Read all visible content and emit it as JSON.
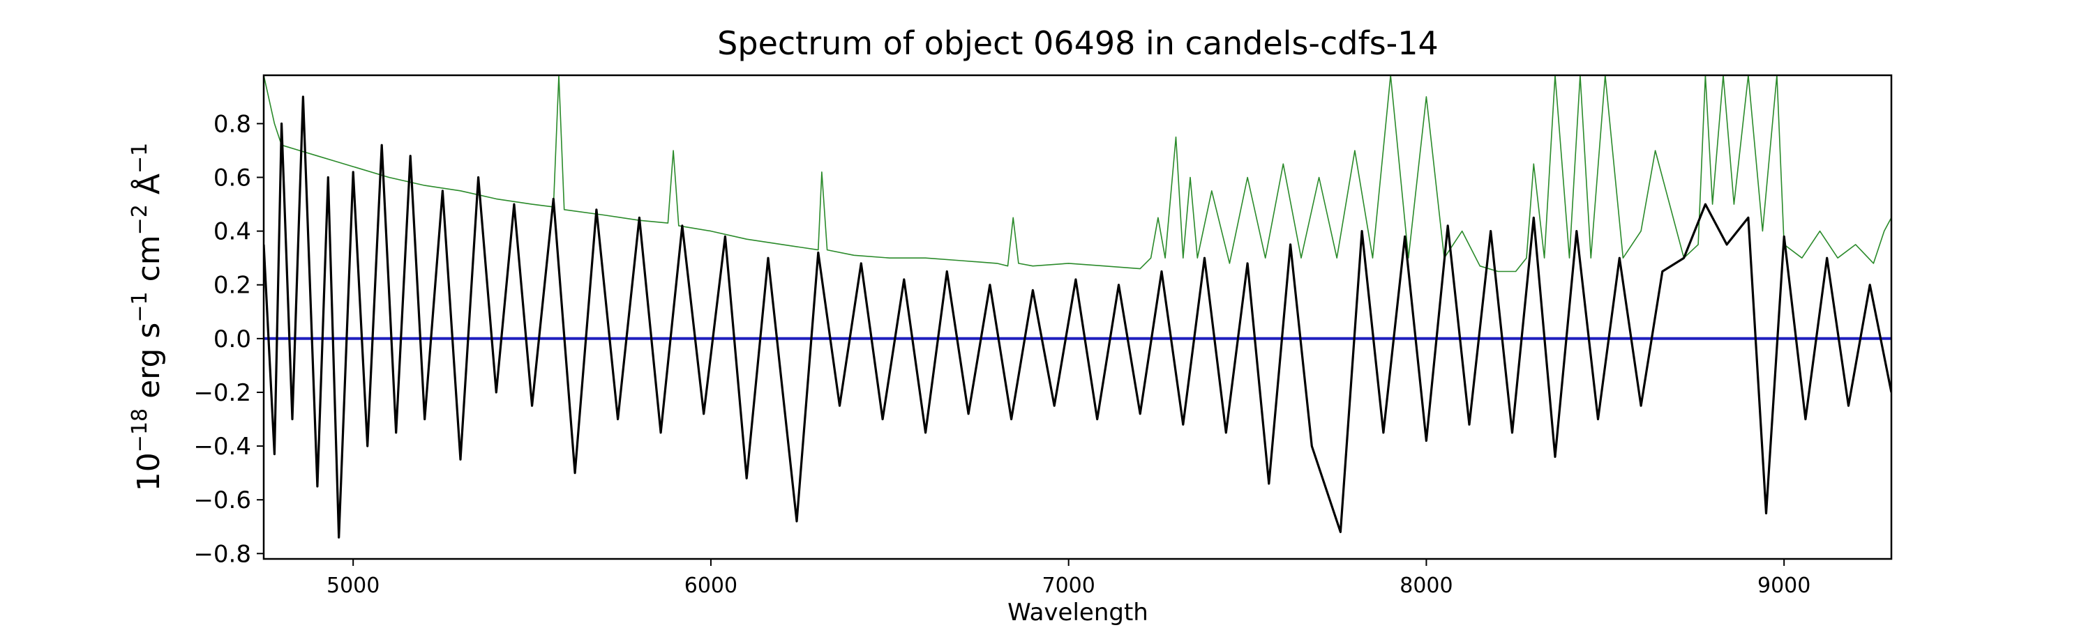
{
  "chart_data": {
    "type": "line",
    "title": "Spectrum of object 06498 in candels-cdfs-14",
    "xlabel": "Wavelength",
    "ylabel_parts": {
      "base": "10",
      "exp_flux": "−18",
      "erg": " erg s",
      "exp_s": "−1",
      "cm": " cm",
      "exp_cm": "−2",
      "ang": " Å",
      "exp_ang": "−1"
    },
    "xlim": [
      4750,
      9300
    ],
    "ylim": [
      -0.82,
      0.98
    ],
    "x_ticks": [
      5000,
      6000,
      7000,
      8000,
      9000
    ],
    "x_tick_labels": [
      "5000",
      "6000",
      "7000",
      "8000",
      "9000"
    ],
    "y_ticks": [
      -0.8,
      -0.6,
      -0.4,
      -0.2,
      0.0,
      0.2,
      0.4,
      0.6,
      0.8
    ],
    "y_tick_labels": [
      "−0.8",
      "−0.6",
      "−0.4",
      "−0.2",
      "0.0",
      "0.2",
      "0.4",
      "0.6",
      "0.8"
    ],
    "grid": false,
    "legend": "none",
    "colors": {
      "flux": "#000000",
      "error": "#2a8a2a",
      "zero": "#1f1fbf"
    },
    "series": [
      {
        "role": "flux",
        "x": [
          4750,
          4780,
          4800,
          4830,
          4860,
          4900,
          4930,
          4960,
          5000,
          5040,
          5080,
          5120,
          5160,
          5200,
          5250,
          5300,
          5350,
          5400,
          5450,
          5500,
          5560,
          5620,
          5680,
          5740,
          5800,
          5860,
          5920,
          5980,
          6040,
          6100,
          6160,
          6240,
          6300,
          6360,
          6420,
          6480,
          6540,
          6600,
          6660,
          6720,
          6780,
          6840,
          6900,
          6960,
          7020,
          7080,
          7140,
          7200,
          7260,
          7320,
          7380,
          7440,
          7500,
          7560,
          7620,
          7680,
          7760,
          7820,
          7880,
          7940,
          8000,
          8060,
          8120,
          8180,
          8240,
          8300,
          8360,
          8420,
          8480,
          8540,
          8600,
          8660,
          8720,
          8780,
          8840,
          8900,
          8950,
          9000,
          9060,
          9120,
          9180,
          9240,
          9300
        ],
        "y": [
          0.35,
          -0.43,
          0.8,
          -0.3,
          0.9,
          -0.55,
          0.6,
          -0.74,
          0.62,
          -0.4,
          0.72,
          -0.35,
          0.68,
          -0.3,
          0.55,
          -0.45,
          0.6,
          -0.2,
          0.5,
          -0.25,
          0.52,
          -0.5,
          0.48,
          -0.3,
          0.45,
          -0.35,
          0.42,
          -0.28,
          0.38,
          -0.52,
          0.3,
          -0.68,
          0.32,
          -0.25,
          0.28,
          -0.3,
          0.22,
          -0.35,
          0.25,
          -0.28,
          0.2,
          -0.3,
          0.18,
          -0.25,
          0.22,
          -0.3,
          0.2,
          -0.28,
          0.25,
          -0.32,
          0.3,
          -0.35,
          0.28,
          -0.54,
          0.35,
          -0.4,
          -0.72,
          0.4,
          -0.35,
          0.38,
          -0.38,
          0.42,
          -0.32,
          0.4,
          -0.35,
          0.45,
          -0.44,
          0.4,
          -0.3,
          0.3,
          -0.25,
          0.25,
          0.3,
          0.5,
          0.35,
          0.45,
          -0.65,
          0.38,
          -0.3,
          0.3,
          -0.25,
          0.2,
          -0.2
        ]
      },
      {
        "role": "error",
        "x": [
          4750,
          4780,
          4800,
          4850,
          4900,
          4950,
          5000,
          5100,
          5200,
          5300,
          5400,
          5500,
          5560,
          5575,
          5590,
          5700,
          5800,
          5880,
          5895,
          5910,
          6000,
          6100,
          6200,
          6300,
          6310,
          6325,
          6400,
          6500,
          6600,
          6700,
          6800,
          6830,
          6845,
          6860,
          6900,
          7000,
          7100,
          7200,
          7230,
          7250,
          7270,
          7300,
          7320,
          7340,
          7360,
          7400,
          7450,
          7500,
          7550,
          7600,
          7650,
          7700,
          7750,
          7800,
          7850,
          7900,
          7950,
          8000,
          8050,
          8100,
          8150,
          8200,
          8250,
          8280,
          8300,
          8330,
          8360,
          8400,
          8430,
          8460,
          8500,
          8550,
          8600,
          8640,
          8680,
          8720,
          8760,
          8780,
          8800,
          8830,
          8860,
          8900,
          8940,
          8980,
          9000,
          9050,
          9100,
          9150,
          9200,
          9250,
          9280,
          9300
        ],
        "y": [
          0.98,
          0.8,
          0.72,
          0.7,
          0.68,
          0.66,
          0.64,
          0.6,
          0.57,
          0.55,
          0.52,
          0.5,
          0.49,
          0.98,
          0.48,
          0.46,
          0.44,
          0.43,
          0.7,
          0.42,
          0.4,
          0.37,
          0.35,
          0.33,
          0.62,
          0.33,
          0.31,
          0.3,
          0.3,
          0.29,
          0.28,
          0.27,
          0.45,
          0.28,
          0.27,
          0.28,
          0.27,
          0.26,
          0.3,
          0.45,
          0.3,
          0.75,
          0.3,
          0.6,
          0.3,
          0.55,
          0.28,
          0.6,
          0.3,
          0.65,
          0.3,
          0.6,
          0.3,
          0.7,
          0.3,
          0.98,
          0.3,
          0.9,
          0.3,
          0.4,
          0.27,
          0.25,
          0.25,
          0.3,
          0.65,
          0.3,
          0.98,
          0.3,
          0.98,
          0.3,
          0.98,
          0.3,
          0.4,
          0.7,
          0.5,
          0.3,
          0.35,
          0.98,
          0.5,
          0.98,
          0.5,
          0.98,
          0.4,
          0.98,
          0.35,
          0.3,
          0.4,
          0.3,
          0.35,
          0.28,
          0.4,
          0.45
        ]
      },
      {
        "role": "zero",
        "x": [
          4750,
          9300
        ],
        "y": [
          0.0,
          0.0
        ]
      }
    ]
  }
}
